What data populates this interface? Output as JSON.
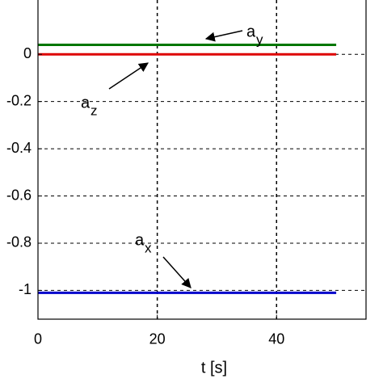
{
  "chart_data": {
    "type": "line",
    "x_label": "t [s]",
    "x": [
      0,
      50
    ],
    "series": [
      {
        "name": "a_y",
        "color": "#007700",
        "values": [
          0.04,
          0.04
        ]
      },
      {
        "name": "a_z",
        "color": "#dd0000",
        "values": [
          0,
          0
        ]
      },
      {
        "name": "a_x",
        "color": "#0000cc",
        "values": [
          -1.01,
          -1.01
        ]
      }
    ],
    "annotations": [
      {
        "text": "a",
        "sub": "y"
      },
      {
        "text": "a",
        "sub": "z"
      },
      {
        "text": "a",
        "sub": "x"
      }
    ],
    "xlim": [
      0,
      55
    ],
    "ylim": [
      -1.12,
      0.23
    ],
    "xticks": [
      0,
      20,
      40
    ],
    "yticks": [
      0,
      -0.2,
      -0.4,
      -0.6,
      -0.8,
      -1
    ],
    "grid": true
  }
}
